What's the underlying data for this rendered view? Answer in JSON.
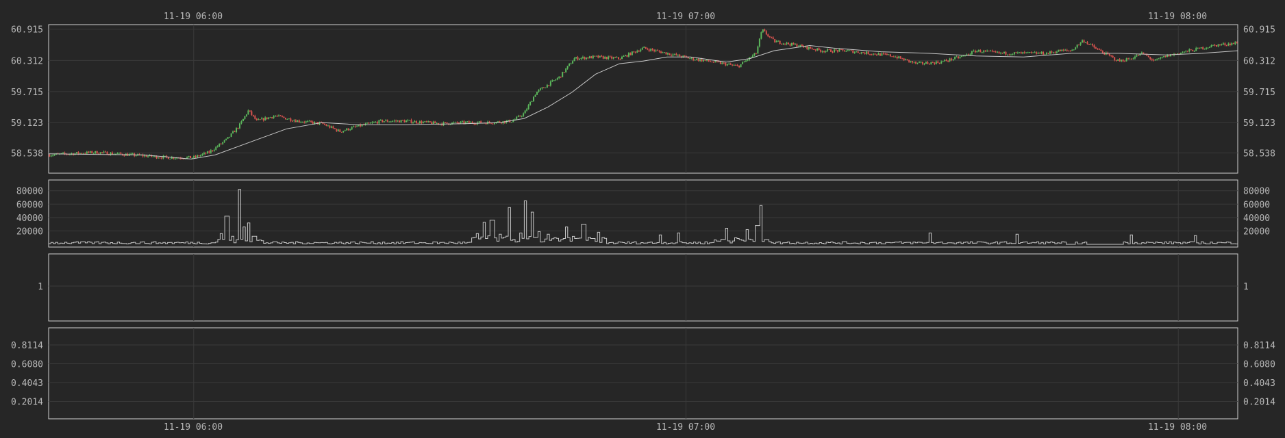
{
  "time_axis": {
    "top_labels": [
      "11-19 06:00",
      "11-19 07:00",
      "11-19 08:00"
    ],
    "bottom_labels": [
      "11-19 06:00",
      "11-19 07:00",
      "11-19 08:00"
    ]
  },
  "colors": {
    "background": "#262626",
    "frame": "#d0d0d0",
    "grid": "#3a3a3a",
    "up": "#5cb85c",
    "down": "#d9534f",
    "line": "#c8c8c8"
  },
  "chart_data": [
    {
      "type": "candlestick",
      "panel": "price",
      "x_range": [
        0,
        100
      ],
      "x_ticks": [
        {
          "x": 12.2,
          "label": "11-19 06:00"
        },
        {
          "x": 53.6,
          "label": "11-19 07:00"
        },
        {
          "x": 95.0,
          "label": "11-19 08:00"
        }
      ],
      "ylim": [
        58.15,
        61.0
      ],
      "y_ticks": [
        "60.915",
        "60.312",
        "59.715",
        "59.123",
        "58.538"
      ],
      "y_tick_values": [
        60.915,
        60.312,
        59.715,
        59.123,
        58.538
      ],
      "close_path": [
        [
          0,
          58.5
        ],
        [
          4,
          58.55
        ],
        [
          7,
          58.5
        ],
        [
          10,
          58.45
        ],
        [
          12.2,
          58.45
        ],
        [
          13.5,
          58.55
        ],
        [
          15,
          58.8
        ],
        [
          16,
          59.05
        ],
        [
          16.8,
          59.35
        ],
        [
          17.5,
          59.15
        ],
        [
          19,
          59.25
        ],
        [
          21,
          59.15
        ],
        [
          23,
          59.1
        ],
        [
          24.5,
          58.95
        ],
        [
          26,
          59.05
        ],
        [
          28,
          59.15
        ],
        [
          30,
          59.15
        ],
        [
          33,
          59.1
        ],
        [
          35,
          59.12
        ],
        [
          37,
          59.12
        ],
        [
          39,
          59.15
        ],
        [
          40,
          59.3
        ],
        [
          41,
          59.7
        ],
        [
          42,
          59.85
        ],
        [
          43,
          60.0
        ],
        [
          44.2,
          60.35
        ],
        [
          46,
          60.38
        ],
        [
          48,
          60.35
        ],
        [
          50,
          60.55
        ],
        [
          52,
          60.45
        ],
        [
          54,
          60.35
        ],
        [
          56,
          60.28
        ],
        [
          58,
          60.2
        ],
        [
          59.5,
          60.45
        ],
        [
          60,
          60.9
        ],
        [
          61,
          60.68
        ],
        [
          63,
          60.6
        ],
        [
          65,
          60.5
        ],
        [
          67,
          60.5
        ],
        [
          69,
          60.45
        ],
        [
          71,
          60.4
        ],
        [
          73,
          60.25
        ],
        [
          75,
          60.28
        ],
        [
          77,
          60.4
        ],
        [
          78,
          60.5
        ],
        [
          80,
          60.45
        ],
        [
          82,
          60.45
        ],
        [
          84,
          60.45
        ],
        [
          85,
          60.5
        ],
        [
          86,
          60.5
        ],
        [
          87,
          60.7
        ],
        [
          88,
          60.55
        ],
        [
          90,
          60.3
        ],
        [
          91,
          60.35
        ],
        [
          92,
          60.45
        ],
        [
          93,
          60.3
        ],
        [
          94,
          60.4
        ],
        [
          96,
          60.5
        ],
        [
          98,
          60.6
        ],
        [
          100,
          60.65
        ]
      ],
      "ma_path": [
        [
          0,
          58.52
        ],
        [
          8,
          58.5
        ],
        [
          12,
          58.42
        ],
        [
          14,
          58.5
        ],
        [
          17,
          58.75
        ],
        [
          20,
          59.0
        ],
        [
          23,
          59.12
        ],
        [
          26,
          59.08
        ],
        [
          30,
          59.08
        ],
        [
          35,
          59.1
        ],
        [
          38,
          59.12
        ],
        [
          40,
          59.2
        ],
        [
          42,
          59.42
        ],
        [
          44,
          59.7
        ],
        [
          46,
          60.05
        ],
        [
          48,
          60.25
        ],
        [
          50,
          60.3
        ],
        [
          52,
          60.38
        ],
        [
          54,
          60.38
        ],
        [
          57,
          60.28
        ],
        [
          59,
          60.35
        ],
        [
          61,
          60.5
        ],
        [
          64,
          60.6
        ],
        [
          66,
          60.55
        ],
        [
          70,
          60.48
        ],
        [
          74,
          60.45
        ],
        [
          78,
          60.4
        ],
        [
          82,
          60.38
        ],
        [
          86,
          60.45
        ],
        [
          90,
          60.45
        ],
        [
          94,
          60.42
        ],
        [
          97,
          60.45
        ],
        [
          100,
          60.5
        ]
      ]
    },
    {
      "type": "bar",
      "panel": "volume",
      "x_range": [
        0,
        100
      ],
      "ylim": [
        0,
        92000
      ],
      "y_ticks": [
        "80000",
        "60000",
        "40000",
        "20000"
      ],
      "y_tick_values": [
        80000,
        60000,
        40000,
        20000
      ],
      "spikes": [
        [
          14.5,
          16000
        ],
        [
          15,
          42000
        ],
        [
          15.5,
          12000
        ],
        [
          16.1,
          82000
        ],
        [
          16.4,
          26000
        ],
        [
          16.9,
          32000
        ],
        [
          17.3,
          12000
        ],
        [
          36.0,
          16000
        ],
        [
          36.7,
          33000
        ],
        [
          37.3,
          36000
        ],
        [
          38.0,
          15000
        ],
        [
          38.8,
          55000
        ],
        [
          39.7,
          17000
        ],
        [
          40.1,
          65000
        ],
        [
          40.6,
          48000
        ],
        [
          41.3,
          19000
        ],
        [
          42.0,
          15000
        ],
        [
          43.5,
          26000
        ],
        [
          45.0,
          30000
        ],
        [
          46.3,
          18000
        ],
        [
          51.5,
          14000
        ],
        [
          53.0,
          17000
        ],
        [
          57.0,
          24000
        ],
        [
          58.8,
          22000
        ],
        [
          59.6,
          28000
        ],
        [
          59.9,
          58000
        ],
        [
          74.1,
          17000
        ],
        [
          81.5,
          15000
        ],
        [
          91.0,
          14000
        ],
        [
          96.5,
          13000
        ]
      ]
    },
    {
      "type": "line",
      "panel": "indicator-1",
      "y_ticks": [
        "1"
      ],
      "y_tick_values": [
        1
      ]
    },
    {
      "type": "line",
      "panel": "indicator-2",
      "y_ticks": [
        "0.8114",
        "0.6080",
        "0.4043",
        "0.2014"
      ],
      "y_tick_values": [
        0.8114,
        0.608,
        0.4043,
        0.2014
      ]
    }
  ]
}
